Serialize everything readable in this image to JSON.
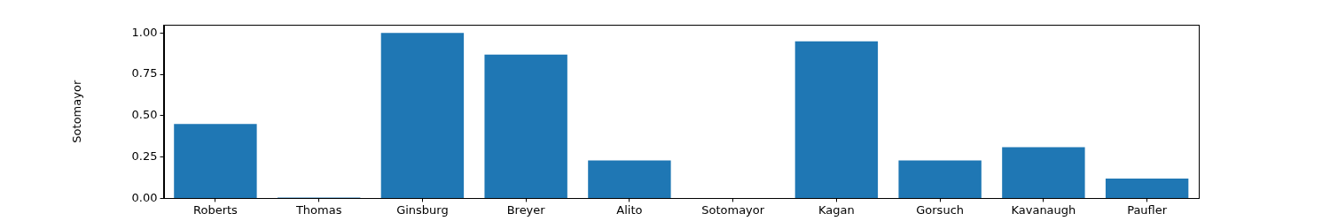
{
  "chart_data": {
    "type": "bar",
    "y_label": "Sotomayor",
    "categories": [
      "Roberts",
      "Thomas",
      "Ginsburg",
      "Breyer",
      "Alito",
      "Sotomayor",
      "Kagan",
      "Gorsuch",
      "Kavanaugh",
      "Paufler"
    ],
    "values": [
      0.45,
      0.005,
      1.0,
      0.87,
      0.23,
      0,
      0.95,
      0.23,
      0.31,
      0.12
    ],
    "color": "#1f77b4",
    "ylim": [
      0,
      1.05
    ],
    "yticks": [
      {
        "value": 0,
        "label": "0.00"
      },
      {
        "value": 0.25,
        "label": "0.25"
      },
      {
        "value": 0.5,
        "label": "0.50"
      },
      {
        "value": 0.75,
        "label": "0.75"
      },
      {
        "value": 1,
        "label": "1.00"
      }
    ],
    "grid": false
  }
}
